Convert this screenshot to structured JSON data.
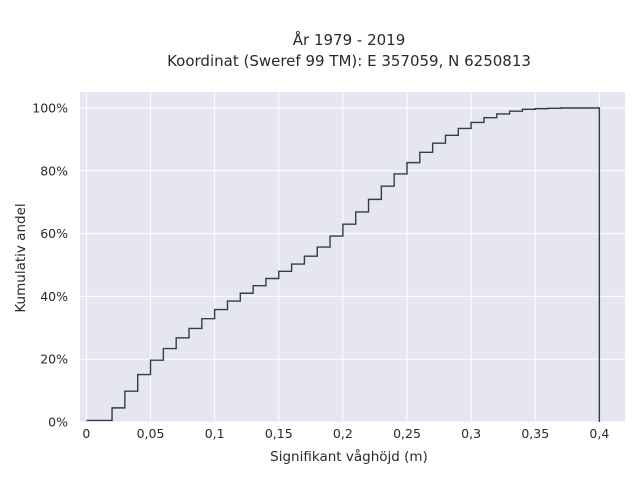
{
  "chart_data": {
    "type": "line",
    "step": true,
    "title": "År 1979 - 2019",
    "subtitle": "Koordinat (Sweref 99 TM): E 357059, N 6250813",
    "xlabel": "Signifikant våghöjd (m)",
    "ylabel": "Kumulativ andel",
    "xlim": [
      -0.005,
      0.42
    ],
    "ylim": [
      0,
      1.04
    ],
    "x_ticks": [
      0,
      0.05,
      0.1,
      0.15,
      0.2,
      0.25,
      0.3,
      0.35,
      0.4
    ],
    "x_tick_labels": [
      "0",
      "0,05",
      "0,1",
      "0,15",
      "0,2",
      "0,25",
      "0,3",
      "0,35",
      "0,4"
    ],
    "y_ticks": [
      0,
      0.2,
      0.4,
      0.6,
      0.8,
      1.0
    ],
    "y_tick_labels": [
      "0%",
      "20%",
      "40%",
      "60%",
      "80%",
      "100%"
    ],
    "grid": true,
    "series": [
      {
        "color": "#2f3e4e",
        "x": [
          0.01,
          0.02,
          0.03,
          0.04,
          0.05,
          0.06,
          0.07,
          0.08,
          0.09,
          0.1,
          0.11,
          0.12,
          0.13,
          0.14,
          0.15,
          0.16,
          0.17,
          0.18,
          0.19,
          0.2,
          0.21,
          0.22,
          0.23,
          0.24,
          0.25,
          0.26,
          0.27,
          0.28,
          0.29,
          0.3,
          0.31,
          0.32,
          0.33,
          0.34,
          0.35,
          0.36,
          0.37,
          0.38,
          0.39,
          0.4
        ],
        "y": [
          0.005,
          0.045,
          0.098,
          0.151,
          0.197,
          0.234,
          0.268,
          0.298,
          0.329,
          0.358,
          0.385,
          0.41,
          0.434,
          0.457,
          0.48,
          0.503,
          0.528,
          0.557,
          0.592,
          0.63,
          0.669,
          0.709,
          0.751,
          0.79,
          0.826,
          0.859,
          0.888,
          0.913,
          0.935,
          0.954,
          0.969,
          0.981,
          0.99,
          0.996,
          0.998,
          0.999,
          1.0,
          1.0,
          1.0,
          1.0
        ]
      }
    ]
  }
}
